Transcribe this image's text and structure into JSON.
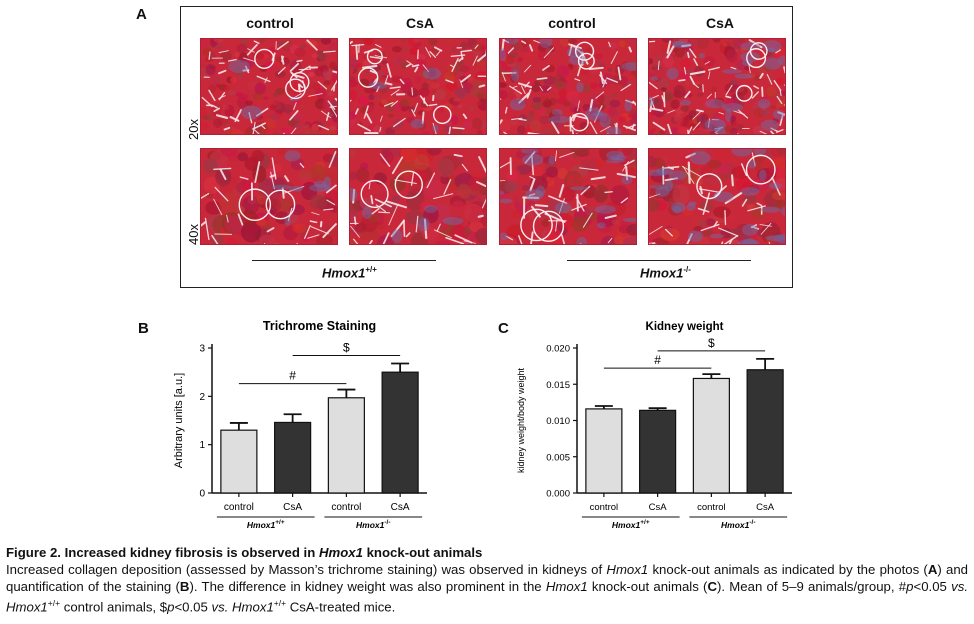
{
  "panel_a": {
    "letter": "A",
    "columns": [
      "control",
      "CsA",
      "control",
      "CsA"
    ],
    "rows": [
      "20x",
      "40x"
    ],
    "groups": [
      {
        "name": "Hmox1",
        "sup": "+/+"
      },
      {
        "name": "Hmox1",
        "sup": "-/-"
      }
    ]
  },
  "panel_b": {
    "letter": "B"
  },
  "panel_c": {
    "letter": "C"
  },
  "chart_data": [
    {
      "type": "bar",
      "title": "Trichrome Staining",
      "ylabel": "Arbitrary units [a.u.]",
      "xlabel": "",
      "ylim": [
        0,
        3
      ],
      "yticks": [
        "0",
        "1",
        "2",
        "3"
      ],
      "categories": [
        "control",
        "CsA",
        "control",
        "CsA"
      ],
      "values": [
        1.3,
        1.46,
        1.97,
        2.5
      ],
      "errors": [
        0.15,
        0.17,
        0.17,
        0.18
      ],
      "bar_colors": [
        "#dedede",
        "#333333",
        "#dedede",
        "#333333"
      ],
      "groups": [
        {
          "name": "Hmox1",
          "sup": "+/+"
        },
        {
          "name": "Hmox1",
          "sup": "-/-"
        }
      ],
      "annotations": [
        {
          "label": "#",
          "from": 0,
          "to": 2
        },
        {
          "label": "$",
          "from": 1,
          "to": 3
        }
      ]
    },
    {
      "type": "bar",
      "title": "Kidney weight",
      "ylabel": "kidney weight/body weight",
      "xlabel": "",
      "ylim": [
        0,
        0.02
      ],
      "yticks": [
        "0.000",
        "0.005",
        "0.010",
        "0.015",
        "0.020"
      ],
      "categories": [
        "control",
        "CsA",
        "control",
        "CsA"
      ],
      "values": [
        0.0116,
        0.0114,
        0.0158,
        0.017
      ],
      "errors": [
        0.0004,
        0.0003,
        0.0006,
        0.0015
      ],
      "bar_colors": [
        "#dedede",
        "#333333",
        "#dedede",
        "#333333"
      ],
      "groups": [
        {
          "name": "Hmox1",
          "sup": "+/+"
        },
        {
          "name": "Hmox1",
          "sup": "-/-"
        }
      ],
      "annotations": [
        {
          "label": "#",
          "from": 0,
          "to": 2
        },
        {
          "label": "$",
          "from": 1,
          "to": 3
        }
      ]
    }
  ],
  "caption": {
    "title_prefix": "Figure 2. Increased kidney fibrosis is observed in ",
    "title_gene": "Hmox1",
    "title_suffix": " knock-out animals",
    "s1": "Increased collagen deposition (assessed by Masson’s trichrome staining) was observed in kidneys of ",
    "s1_gene": "Hmox1",
    "s2": " knock-out animals as indicated by the photos (",
    "s2_a": "A",
    "s3": ") and quantification of the staining (",
    "s3_b": "B",
    "s4": "). The difference in kidney weight was also prominent in the ",
    "s4_gene": "Hmox1",
    "s5": " knock-out animals (",
    "s5_c": "C",
    "s6": "). Mean of 5–9 animals/group, #",
    "s6_p": "p",
    "s7": "<0.05 ",
    "s7_vs": "vs.",
    "s8_gene": "Hmox1",
    "s8_sup": "+/+",
    "s9": " control animals, $",
    "s9_p": "p",
    "s10": "<0.05 ",
    "s10_vs": "vs.",
    "s11_gene": "Hmox1",
    "s11_sup": "+/+",
    "s12": " CsA-treated mice."
  },
  "colors": {
    "stain_red": "#c8283a",
    "stain_blue": "#6a6fae",
    "light_bar": "#dedede",
    "dark_bar": "#333333"
  }
}
